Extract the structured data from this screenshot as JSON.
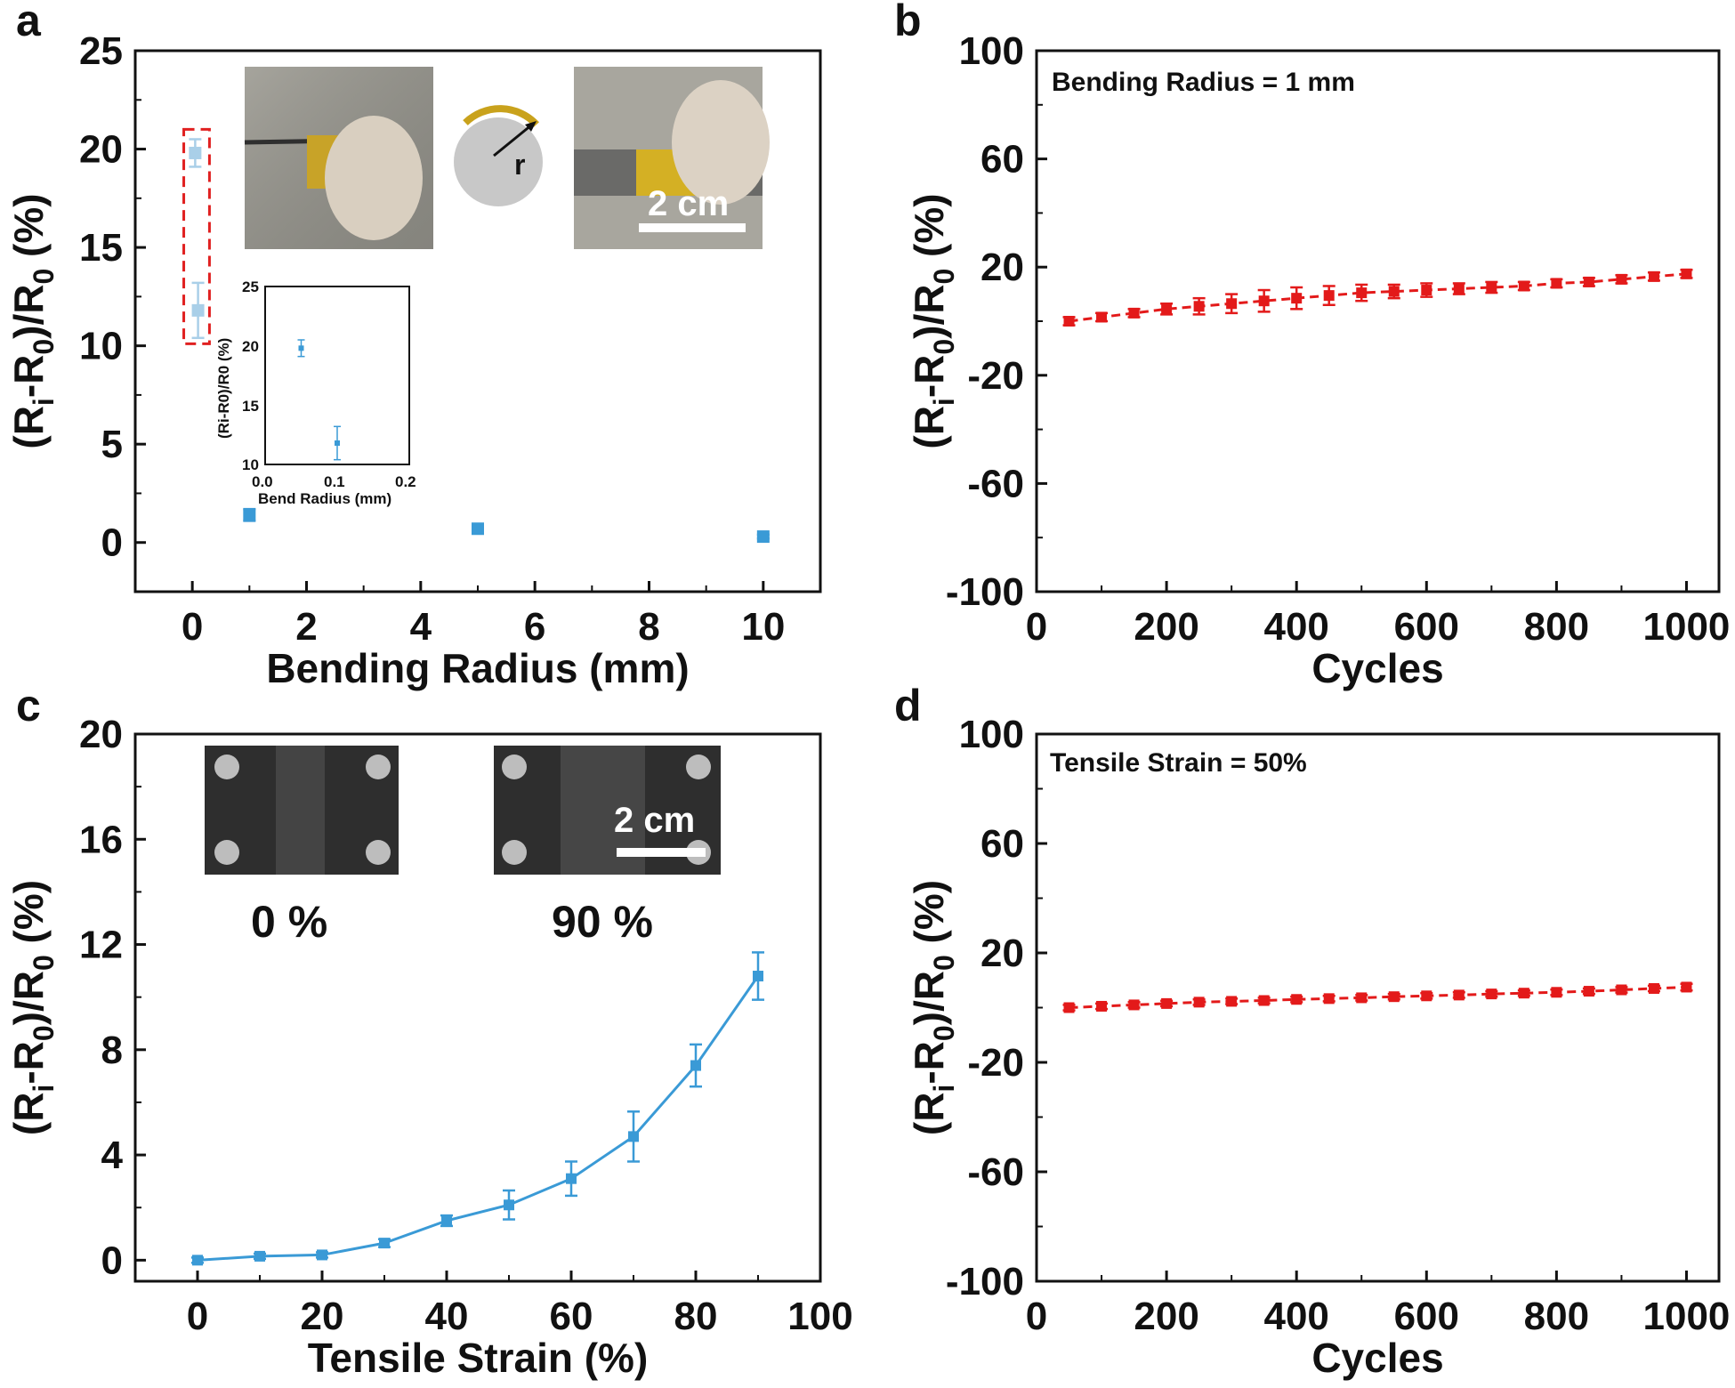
{
  "panels": {
    "a": {
      "letter": "a",
      "inset_r_label": "r",
      "scale_label": "2 cm",
      "inset_plot": {
        "xlabel": "Bend Radius (mm)",
        "ylabel": "(Ri-R0)/R0 (%)",
        "xticks": [
          "0.0",
          "0.1",
          "0.2"
        ],
        "yticks": [
          "10",
          "15",
          "20",
          "25"
        ]
      }
    },
    "b": {
      "letter": "b",
      "annotation": "Bending Radius = 1 mm"
    },
    "c": {
      "letter": "c",
      "photo_label_1": "0 %",
      "photo_label_2": "90 %",
      "scale_label": "2 cm"
    },
    "d": {
      "letter": "d",
      "annotation": "Tensile Strain = 50%"
    }
  },
  "chart_data": [
    {
      "panel": "a",
      "type": "scatter",
      "xlabel": "Bending Radius (mm)",
      "ylabel": "(Ri-R0)/R0 (%)",
      "xlim": [
        -1,
        11
      ],
      "ylim": [
        -2.5,
        25
      ],
      "xticks": [
        0,
        2,
        4,
        6,
        8,
        10
      ],
      "yticks": [
        0,
        5,
        10,
        15,
        20,
        25
      ],
      "color": "#3a9ad6",
      "series": [
        {
          "x": [
            1,
            5,
            10
          ],
          "y": [
            1.4,
            0.7,
            0.3
          ],
          "err": [
            0.3,
            0.2,
            0.1
          ]
        }
      ],
      "highlight_points": {
        "x": [
          0.05,
          0.1
        ],
        "y": [
          19.8,
          11.8
        ],
        "err": [
          0.7,
          1.4
        ],
        "box_color": "#e02020"
      },
      "inset": {
        "xlim": [
          0,
          0.2
        ],
        "ylim": [
          10,
          25
        ],
        "x": [
          0.05,
          0.1
        ],
        "y": [
          19.8,
          11.8
        ],
        "err": [
          0.7,
          1.4
        ]
      }
    },
    {
      "panel": "b",
      "type": "line",
      "xlabel": "Cycles",
      "ylabel": "(Ri-R0)/R0 (%)",
      "xlim": [
        0,
        1050
      ],
      "ylim": [
        -100,
        100
      ],
      "xticks": [
        0,
        200,
        400,
        600,
        800,
        1000
      ],
      "yticks": [
        -100,
        -60,
        -20,
        20,
        60,
        100
      ],
      "color": "#e31a1a",
      "dashed": true,
      "x": [
        50,
        100,
        150,
        200,
        250,
        300,
        350,
        400,
        450,
        500,
        550,
        600,
        650,
        700,
        750,
        800,
        850,
        900,
        950,
        1000
      ],
      "y": [
        0,
        1.5,
        3,
        4.5,
        5.5,
        6.5,
        7.5,
        8.5,
        9.5,
        10.5,
        11,
        11.5,
        12,
        12.5,
        13,
        14,
        14.5,
        15.5,
        16.5,
        17.5
      ],
      "err": [
        1.5,
        1.5,
        1.5,
        2,
        3,
        3.5,
        4,
        4,
        3.5,
        3,
        2.5,
        2.5,
        2,
        2,
        1.5,
        1.5,
        1.5,
        1.5,
        1.5,
        1.5
      ]
    },
    {
      "panel": "c",
      "type": "line",
      "xlabel": "Tensile Strain (%)",
      "ylabel": "(Ri-R0)/R0 (%)",
      "xlim": [
        -10,
        100
      ],
      "ylim": [
        -0.8,
        20
      ],
      "xticks": [
        0,
        20,
        40,
        60,
        80,
        100
      ],
      "yticks": [
        0,
        4,
        8,
        12,
        16,
        20
      ],
      "color": "#3a9ad6",
      "x": [
        0,
        10,
        20,
        30,
        40,
        50,
        60,
        70,
        80,
        90
      ],
      "y": [
        0.0,
        0.15,
        0.2,
        0.65,
        1.5,
        2.1,
        3.1,
        4.7,
        7.4,
        10.8
      ],
      "err": [
        0.1,
        0.1,
        0.1,
        0.15,
        0.2,
        0.55,
        0.65,
        0.95,
        0.8,
        0.9
      ]
    },
    {
      "panel": "d",
      "type": "line",
      "xlabel": "Cycles",
      "ylabel": "(Ri-R0)/R0 (%)",
      "xlim": [
        0,
        1050
      ],
      "ylim": [
        -100,
        100
      ],
      "xticks": [
        0,
        200,
        400,
        600,
        800,
        1000
      ],
      "yticks": [
        -100,
        -60,
        -20,
        20,
        60,
        100
      ],
      "color": "#e31a1a",
      "dashed": true,
      "x": [
        50,
        100,
        150,
        200,
        250,
        300,
        350,
        400,
        450,
        500,
        550,
        600,
        650,
        700,
        750,
        800,
        850,
        900,
        950,
        1000
      ],
      "y": [
        0,
        0.5,
        1,
        1.5,
        2,
        2.3,
        2.6,
        3,
        3.3,
        3.6,
        4,
        4.3,
        4.6,
        5,
        5.3,
        5.6,
        6,
        6.5,
        7,
        7.5
      ],
      "err": [
        1,
        1,
        1,
        1,
        1,
        1,
        1,
        1,
        1,
        1,
        1,
        1,
        1,
        1,
        1,
        1,
        1,
        1,
        1,
        1.2
      ]
    }
  ]
}
